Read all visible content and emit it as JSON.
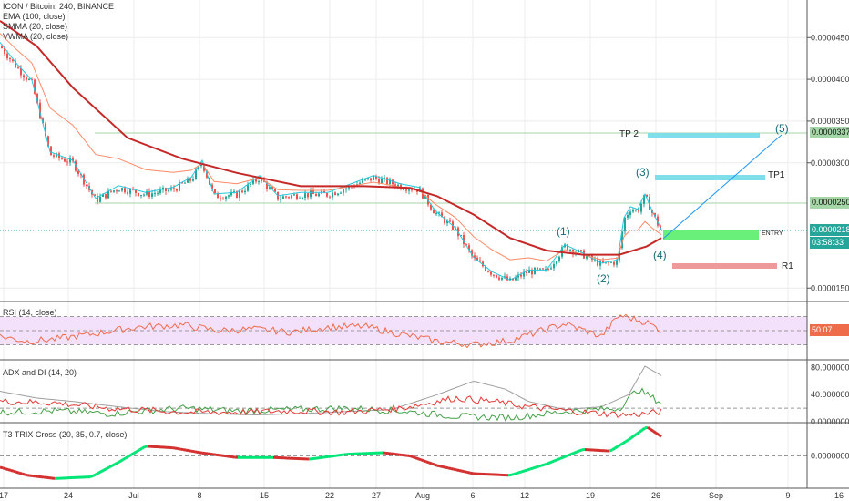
{
  "header": {
    "symbol_line": "ICON / Bitcoin, 240, BINANCE",
    "indicators": [
      "EMA (100, close)",
      "SMMA (20, close)",
      "VWMA (20, close)"
    ]
  },
  "colors": {
    "up": "#26a69a",
    "down": "#ef5350",
    "ema": "#c62828",
    "smma": "#ff8a65",
    "vwma": "#26c6da",
    "rsi": "#ef6c4a",
    "rsi_band": "#f3e0fb",
    "adx": "#9e9e9e",
    "di_plus": "#43a047",
    "di_minus": "#e53935",
    "trix_up": "#00e676",
    "trix_down": "#d32f2f",
    "tp": "#80deea",
    "entry": "#69f07a",
    "r1": "#ef9a9a"
  },
  "chart_data": [
    {
      "type": "candlestick",
      "title": "ICON / Bitcoin, 240, BINANCE",
      "ylim": [
        1.35e-06,
        4.95e-06
      ],
      "y_ticks": [
        "0.0000450",
        "0.0000400",
        "0.0000350",
        "0.0000300",
        "0.0000150"
      ],
      "x_ticks": [
        "17",
        "24",
        "Jul",
        "8",
        "15",
        "22",
        "27",
        "Aug",
        "6",
        "12",
        "19",
        "26",
        "Sep",
        "9",
        "16"
      ],
      "price_path": [
        [
          0,
          4.4e-06
        ],
        [
          18,
          4.15e-06
        ],
        [
          35,
          3.95e-06
        ],
        [
          55,
          3.1e-06
        ],
        [
          80,
          3e-06
        ],
        [
          105,
          2.55e-06
        ],
        [
          130,
          2.7e-06
        ],
        [
          160,
          2.62e-06
        ],
        [
          190,
          2.68e-06
        ],
        [
          210,
          2.8e-06
        ],
        [
          222,
          3e-06
        ],
        [
          235,
          2.6e-06
        ],
        [
          260,
          2.62e-06
        ],
        [
          285,
          2.82e-06
        ],
        [
          305,
          2.58e-06
        ],
        [
          330,
          2.62e-06
        ],
        [
          360,
          2.62e-06
        ],
        [
          385,
          2.72e-06
        ],
        [
          410,
          2.82e-06
        ],
        [
          440,
          2.72e-06
        ],
        [
          460,
          2.68e-06
        ],
        [
          478,
          2.4e-06
        ],
        [
          500,
          2.2e-06
        ],
        [
          520,
          1.85e-06
        ],
        [
          540,
          1.68e-06
        ],
        [
          560,
          1.58e-06
        ],
        [
          580,
          1.7e-06
        ],
        [
          600,
          1.7e-06
        ],
        [
          620,
          2e-06
        ],
        [
          640,
          1.9e-06
        ],
        [
          660,
          1.78e-06
        ],
        [
          678,
          1.82e-06
        ],
        [
          685,
          2.32e-06
        ],
        [
          692,
          2.45e-06
        ],
        [
          700,
          2.42e-06
        ],
        [
          708,
          2.6e-06
        ],
        [
          716,
          2.4e-06
        ],
        [
          726,
          2.18e-06
        ]
      ],
      "ema100": [
        [
          0,
          4.7e-06
        ],
        [
          40,
          4.4e-06
        ],
        [
          80,
          3.9e-06
        ],
        [
          140,
          3.3e-06
        ],
        [
          200,
          3.05e-06
        ],
        [
          260,
          2.88e-06
        ],
        [
          330,
          2.72e-06
        ],
        [
          400,
          2.72e-06
        ],
        [
          450,
          2.7e-06
        ],
        [
          480,
          2.6e-06
        ],
        [
          520,
          2.38e-06
        ],
        [
          560,
          2.1e-06
        ],
        [
          600,
          1.95e-06
        ],
        [
          640,
          1.9e-06
        ],
        [
          680,
          1.9e-06
        ],
        [
          710,
          2e-06
        ],
        [
          726,
          2.1e-06
        ]
      ],
      "annotations": {
        "tp2": {
          "label": "TP 2",
          "value": "0.0000337"
        },
        "tp1": {
          "label": "TP1"
        },
        "entry": {
          "label": "ENTRY",
          "value": "0.0000218",
          "timer": "03:58:33"
        },
        "r1": {
          "label": "R1"
        },
        "level_250": "0.0000250",
        "waves": [
          "(1)",
          "(2)",
          "(3)",
          "(4)",
          "(5)"
        ]
      }
    },
    {
      "type": "line",
      "title": "RSI (14, close)",
      "ylim": [
        10,
        90
      ],
      "band": [
        30,
        70
      ],
      "last_value": "50.07",
      "series": [
        {
          "values": [
            [
              0,
              42
            ],
            [
              30,
              35
            ],
            [
              60,
              38
            ],
            [
              100,
              45
            ],
            [
              150,
              55
            ],
            [
              200,
              58
            ],
            [
              240,
              50
            ],
            [
              280,
              52
            ],
            [
              320,
              48
            ],
            [
              360,
              55
            ],
            [
              400,
              56
            ],
            [
              440,
              45
            ],
            [
              480,
              35
            ],
            [
              520,
              30
            ],
            [
              560,
              36
            ],
            [
              600,
              52
            ],
            [
              620,
              60
            ],
            [
              660,
              42
            ],
            [
              680,
              72
            ],
            [
              700,
              65
            ],
            [
              710,
              62
            ],
            [
              726,
              50
            ]
          ]
        }
      ]
    },
    {
      "type": "line",
      "title": "ADX and DI (14, 20)",
      "ylim": [
        0,
        90
      ],
      "y_ticks": [
        "80.0000000",
        "40.0000000",
        "0.0000000"
      ],
      "series": [
        {
          "values": [
            [
              0,
              45
            ],
            [
              40,
              35
            ],
            [
              80,
              30
            ],
            [
              130,
              22
            ],
            [
              180,
              15
            ],
            [
              230,
              12
            ],
            [
              280,
              10
            ],
            [
              330,
              12
            ],
            [
              380,
              15
            ],
            [
              430,
              18
            ],
            [
              480,
              40
            ],
            [
              520,
              60
            ],
            [
              555,
              48
            ],
            [
              580,
              30
            ],
            [
              620,
              18
            ],
            [
              660,
              22
            ],
            [
              690,
              40
            ],
            [
              708,
              82
            ],
            [
              726,
              68
            ]
          ]
        },
        {
          "values": [
            [
              0,
              14
            ],
            [
              60,
              16
            ],
            [
              120,
              12
            ],
            [
              200,
              20
            ],
            [
              260,
              16
            ],
            [
              320,
              18
            ],
            [
              380,
              20
            ],
            [
              440,
              16
            ],
            [
              500,
              8
            ],
            [
              560,
              6
            ],
            [
              620,
              15
            ],
            [
              680,
              20
            ],
            [
              700,
              48
            ],
            [
              726,
              28
            ]
          ]
        },
        {
          "values": [
            [
              0,
              30
            ],
            [
              60,
              28
            ],
            [
              120,
              20
            ],
            [
              200,
              14
            ],
            [
              260,
              14
            ],
            [
              320,
              16
            ],
            [
              380,
              14
            ],
            [
              440,
              20
            ],
            [
              500,
              35
            ],
            [
              540,
              30
            ],
            [
              580,
              22
            ],
            [
              640,
              14
            ],
            [
              690,
              10
            ],
            [
              710,
              12
            ],
            [
              726,
              15
            ]
          ]
        }
      ]
    },
    {
      "type": "line",
      "title": "T3 TRIX Cross (20, 35, 0.7, close)",
      "ylim": [
        -1,
        1
      ],
      "y_ticks": [
        "0.0000000"
      ],
      "series": [
        {
          "values": [
            [
              0,
              -0.35
            ],
            [
              30,
              -0.6
            ],
            [
              60,
              -0.7
            ],
            [
              100,
              -0.65
            ],
            [
              130,
              -0.2
            ],
            [
              160,
              0.3
            ],
            [
              190,
              0.25
            ],
            [
              220,
              0.1
            ],
            [
              260,
              -0.05
            ],
            [
              300,
              -0.05
            ],
            [
              340,
              -0.1
            ],
            [
              380,
              0.05
            ],
            [
              420,
              0.1
            ],
            [
              450,
              0.0
            ],
            [
              480,
              -0.3
            ],
            [
              520,
              -0.55
            ],
            [
              560,
              -0.6
            ],
            [
              600,
              -0.25
            ],
            [
              640,
              0.2
            ],
            [
              670,
              0.15
            ],
            [
              690,
              0.5
            ],
            [
              710,
              0.9
            ],
            [
              726,
              0.6
            ]
          ]
        }
      ]
    }
  ]
}
